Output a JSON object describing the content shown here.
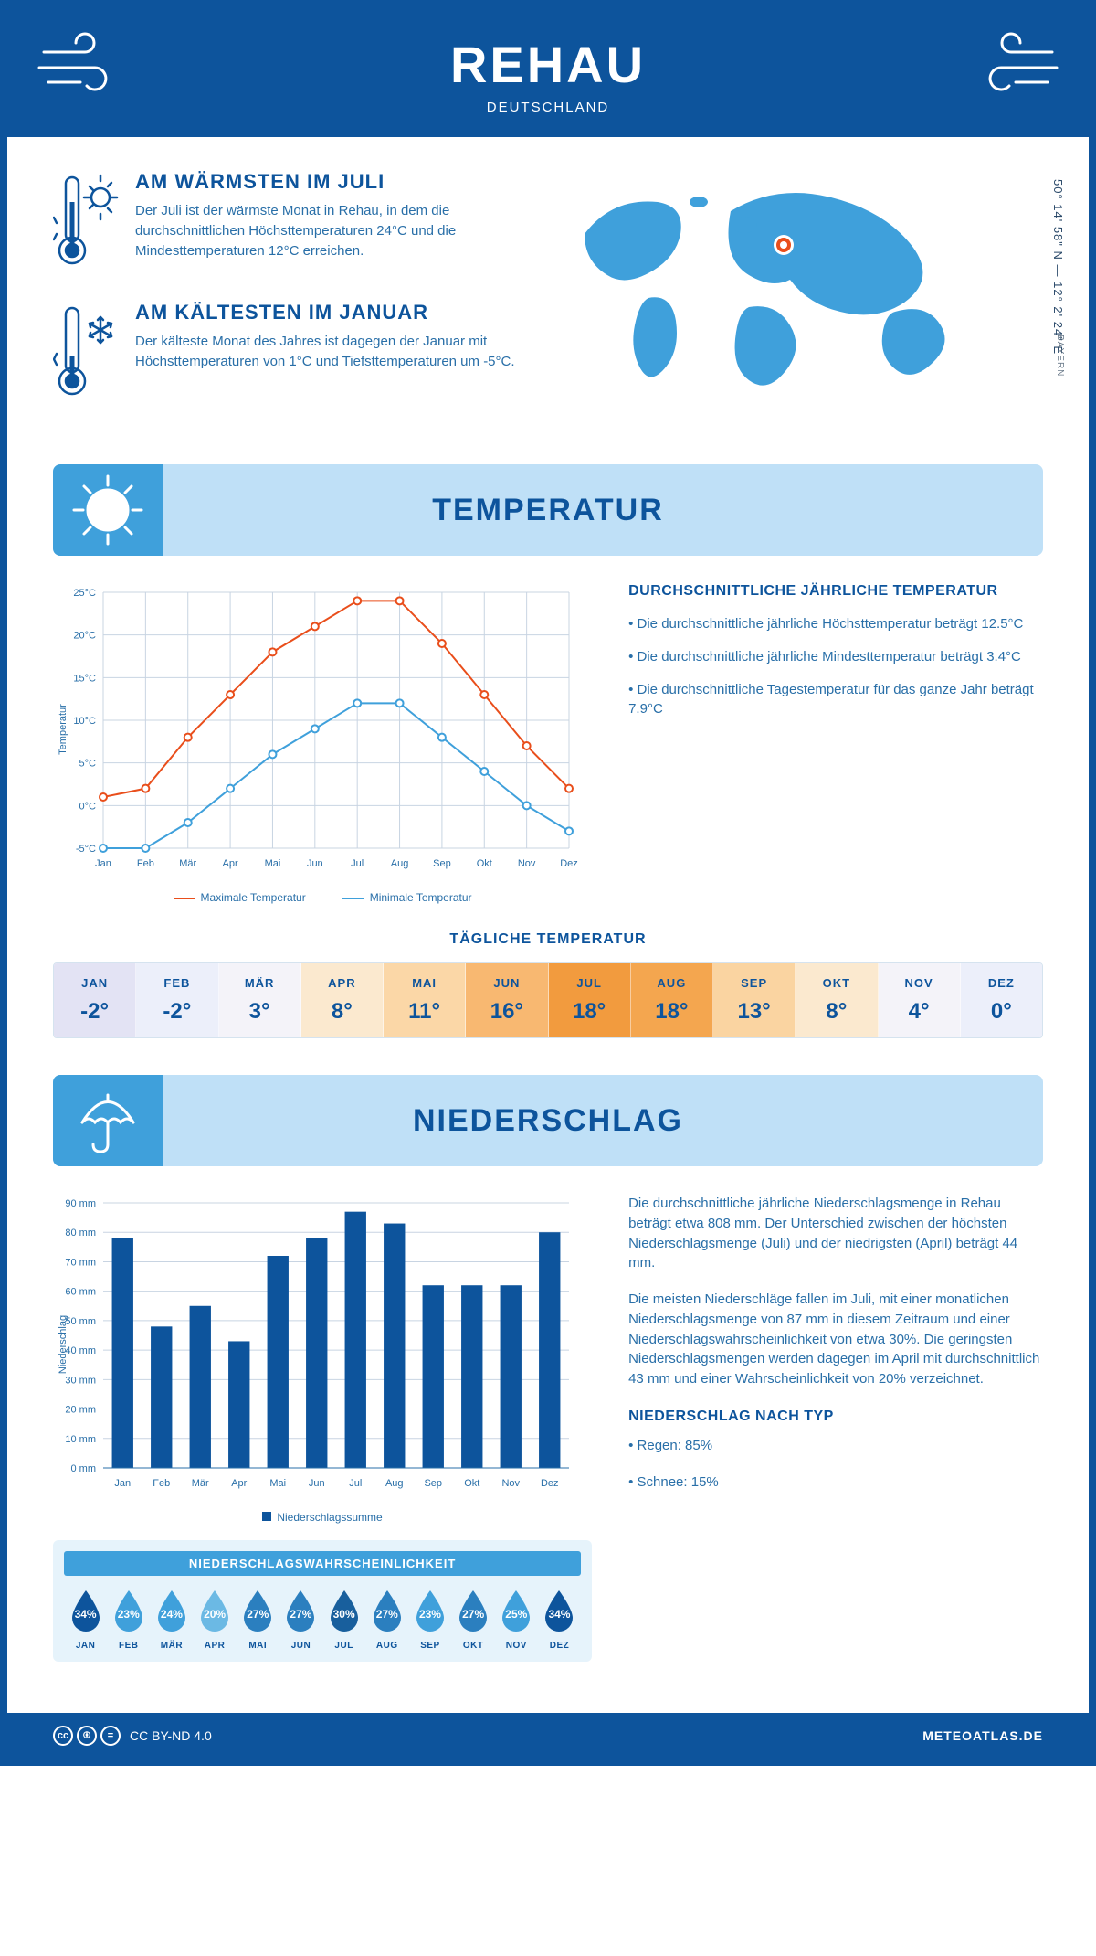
{
  "colors": {
    "primary": "#0d549c",
    "accent": "#3fa0db",
    "light_blue": "#bfe0f7",
    "text_body": "#296fa8",
    "max_line": "#e94e1b",
    "min_line": "#3fa0db",
    "grid": "#c8d4e2"
  },
  "header": {
    "title": "REHAU",
    "subtitle": "DEUTSCHLAND"
  },
  "coords": "50° 14' 58\" N — 12° 2' 24\" E",
  "region": "BAYERN",
  "warm": {
    "title": "AM WÄRMSTEN IM JULI",
    "text": "Der Juli ist der wärmste Monat in Rehau, in dem die durchschnittlichen Höchsttemperaturen 24°C und die Mindesttemperaturen 12°C erreichen."
  },
  "cold": {
    "title": "AM KÄLTESTEN IM JANUAR",
    "text": "Der kälteste Monat des Jahres ist dagegen der Januar mit Höchsttemperaturen von 1°C und Tiefsttemperaturen um -5°C."
  },
  "temp_section": {
    "title": "TEMPERATUR"
  },
  "temp_chart": {
    "type": "line",
    "months": [
      "Jan",
      "Feb",
      "Mär",
      "Apr",
      "Mai",
      "Jun",
      "Jul",
      "Aug",
      "Sep",
      "Okt",
      "Nov",
      "Dez"
    ],
    "max": [
      1,
      2,
      8,
      13,
      18,
      21,
      24,
      24,
      19,
      13,
      7,
      2
    ],
    "min": [
      -5,
      -5,
      -2,
      2,
      6,
      9,
      12,
      12,
      8,
      4,
      0,
      -3
    ],
    "ylim": [
      -5,
      25
    ],
    "ytick_step": 5,
    "ylabel": "Temperatur",
    "legend_max": "Maximale Temperatur",
    "legend_min": "Minimale Temperatur",
    "label_fontsize": 11,
    "title_fontsize": 11,
    "line_width": 2,
    "marker": "circle",
    "marker_size": 4,
    "background": "#ffffff"
  },
  "temp_info": {
    "heading": "DURCHSCHNITTLICHE JÄHRLICHE TEMPERATUR",
    "b1": "• Die durchschnittliche jährliche Höchsttemperatur beträgt 12.5°C",
    "b2": "• Die durchschnittliche jährliche Mindesttemperatur beträgt 3.4°C",
    "b3": "• Die durchschnittliche Tagestemperatur für das ganze Jahr beträgt 7.9°C"
  },
  "daily_title": "TÄGLICHE TEMPERATUR",
  "daily_temp": {
    "months": [
      "JAN",
      "FEB",
      "MÄR",
      "APR",
      "MAI",
      "JUN",
      "JUL",
      "AUG",
      "SEP",
      "OKT",
      "NOV",
      "DEZ"
    ],
    "values": [
      "-2°",
      "-2°",
      "3°",
      "8°",
      "11°",
      "16°",
      "18°",
      "18°",
      "13°",
      "8°",
      "4°",
      "0°"
    ],
    "colors": [
      "#e3e3f4",
      "#eceffa",
      "#f4f3f9",
      "#fbe9cf",
      "#fbd7a7",
      "#f8b871",
      "#f29b3e",
      "#f4a64f",
      "#fad4a1",
      "#fbe9cf",
      "#f4f3f9",
      "#eceffa"
    ]
  },
  "precip_section": {
    "title": "NIEDERSCHLAG"
  },
  "precip_chart": {
    "type": "bar",
    "months": [
      "Jan",
      "Feb",
      "Mär",
      "Apr",
      "Mai",
      "Jun",
      "Jul",
      "Aug",
      "Sep",
      "Okt",
      "Nov",
      "Dez"
    ],
    "values": [
      78,
      48,
      55,
      43,
      72,
      78,
      87,
      83,
      62,
      62,
      62,
      80
    ],
    "ylim": [
      0,
      90
    ],
    "ytick_step": 10,
    "ylabel": "Niederschlag",
    "bar_color": "#0d549c",
    "legend": "Niederschlagssumme",
    "bar_width": 0.55,
    "background": "#ffffff"
  },
  "precip_text": {
    "p1": "Die durchschnittliche jährliche Niederschlagsmenge in Rehau beträgt etwa 808 mm. Der Unterschied zwischen der höchsten Niederschlagsmenge (Juli) und der niedrigsten (April) beträgt 44 mm.",
    "p2": "Die meisten Niederschläge fallen im Juli, mit einer monatlichen Niederschlagsmenge von 87 mm in diesem Zeitraum und einer Niederschlagswahrscheinlichkeit von etwa 30%. Die geringsten Niederschlagsmengen werden dagegen im April mit durchschnittlich 43 mm und einer Wahrscheinlichkeit von 20% verzeichnet.",
    "type_heading": "NIEDERSCHLAG NACH TYP",
    "type1": "• Regen: 85%",
    "type2": "• Schnee: 15%"
  },
  "prob": {
    "title": "NIEDERSCHLAGSWAHRSCHEINLICHKEIT",
    "months": [
      "JAN",
      "FEB",
      "MÄR",
      "APR",
      "MAI",
      "JUN",
      "JUL",
      "AUG",
      "SEP",
      "OKT",
      "NOV",
      "DEZ"
    ],
    "values": [
      "34%",
      "23%",
      "24%",
      "20%",
      "27%",
      "27%",
      "30%",
      "27%",
      "23%",
      "27%",
      "25%",
      "34%"
    ],
    "colors": [
      "#0d549c",
      "#3fa0db",
      "#3fa0db",
      "#6bb9e4",
      "#2b7fbf",
      "#2b7fbf",
      "#185f9d",
      "#2b7fbf",
      "#3fa0db",
      "#2b7fbf",
      "#3fa0db",
      "#0d549c"
    ]
  },
  "footer": {
    "license": "CC BY-ND 4.0",
    "site": "METEOATLAS.DE"
  }
}
